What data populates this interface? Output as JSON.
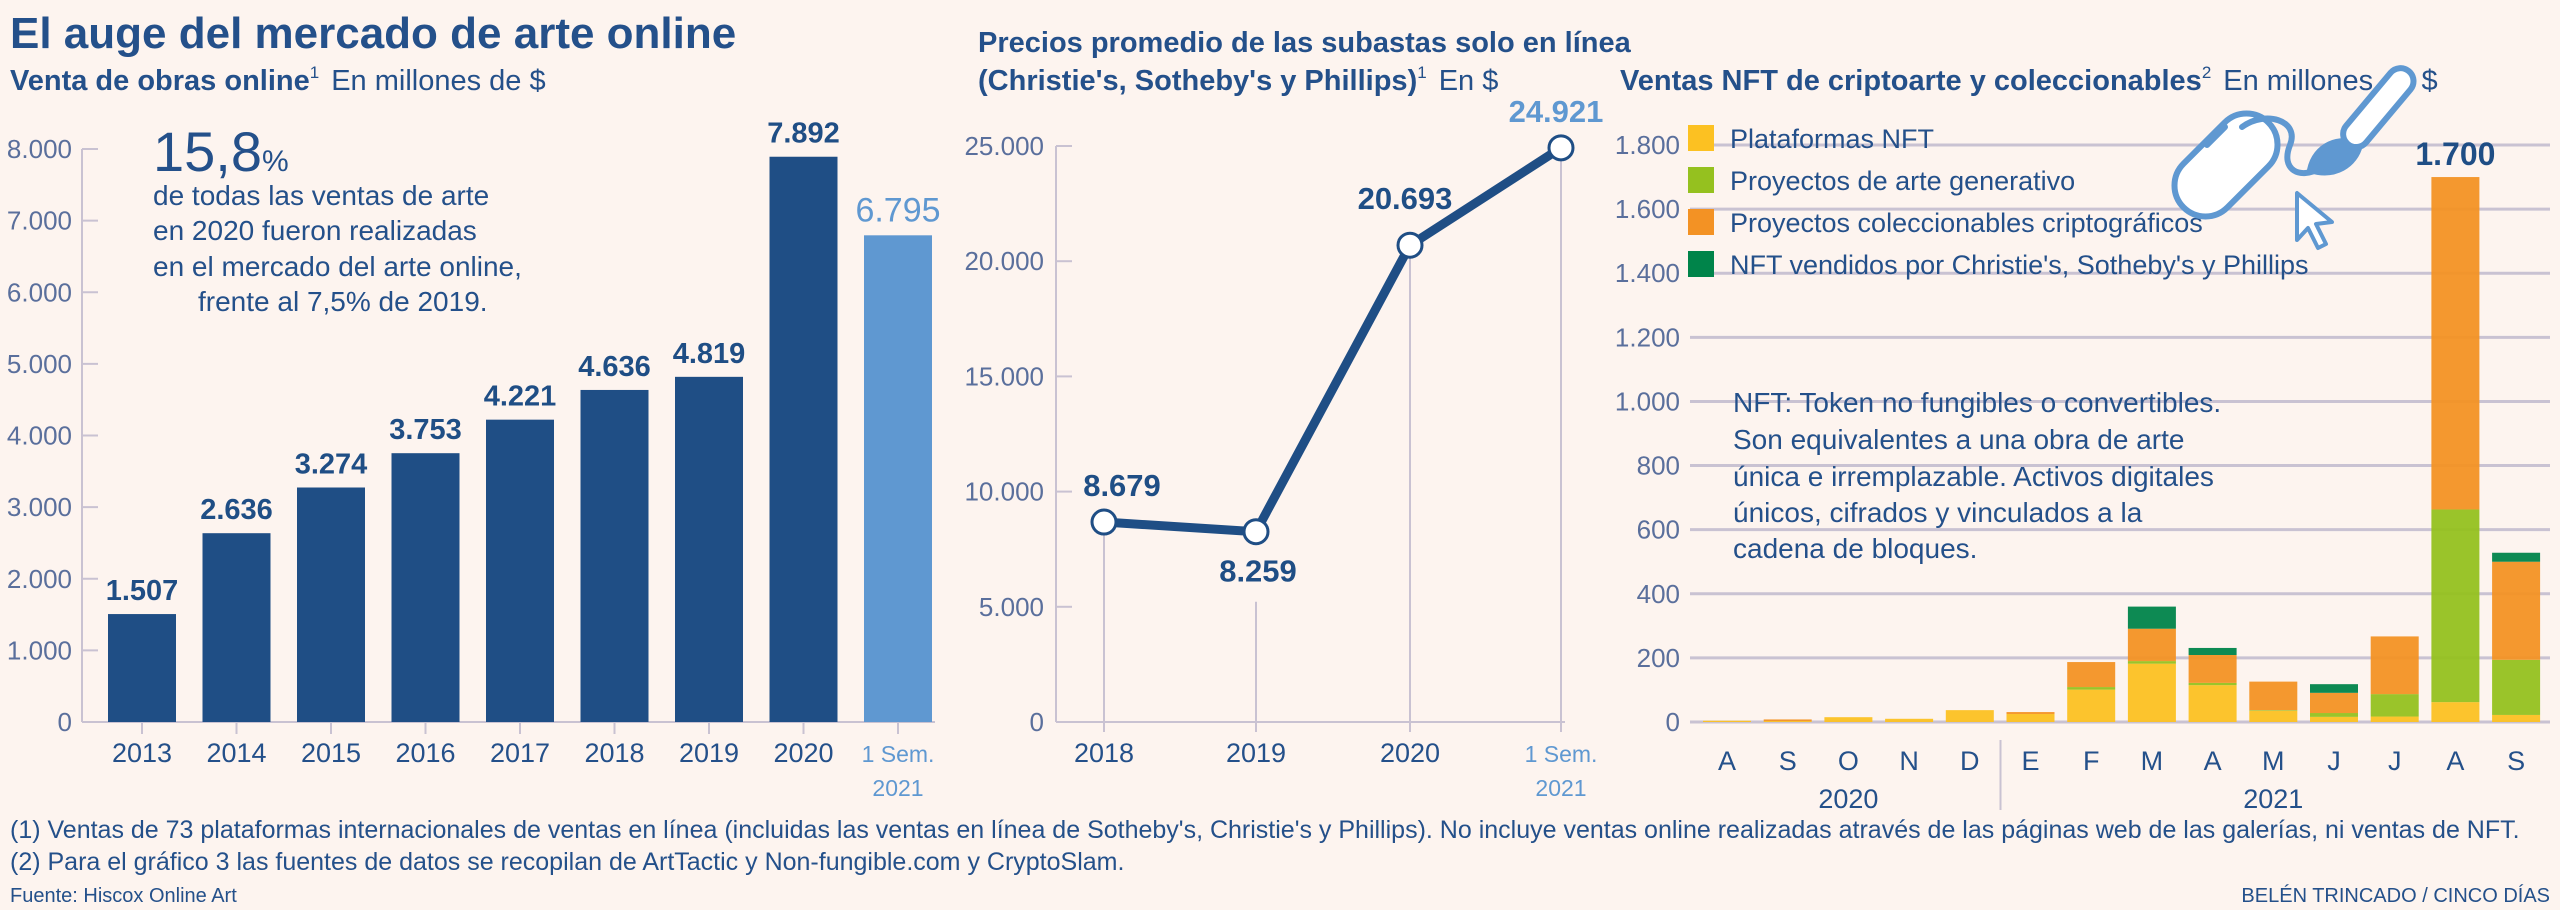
{
  "header": {
    "title": "El auge del mercado de arte online"
  },
  "colors": {
    "background": "#fdf4ef",
    "dark_blue": "#1f4e85",
    "light_blue": "#5f98d1",
    "nft_platforms": "#fcc122",
    "generative_art": "#95c11f",
    "collectibles": "#f39224",
    "auction_houses": "#00844a"
  },
  "icon": "mouse-and-paintbrush-icon",
  "callout": {
    "big_number": "15,8",
    "big_unit": "%",
    "lines": [
      "de todas las ventas de arte",
      "en 2020 fueron realizadas",
      "en el mercado del arte online,",
      "frente al 7,5% de 2019."
    ]
  },
  "nft_note": [
    "NFT: Token no fungibles o convertibles.",
    "Son equivalentes a una obra de arte",
    "única e irremplazable. Activos digitales",
    "únicos, cifrados y vinculados a la",
    "cadena de bloques."
  ],
  "chart_data": [
    {
      "type": "bar",
      "title": "Venta de obras online",
      "title_sup": "1",
      "subtitle": "En millones de $",
      "categories": [
        "2013",
        "2014",
        "2015",
        "2016",
        "2017",
        "2018",
        "2019",
        "2020",
        "1 Sem.|2021"
      ],
      "values": [
        1507,
        2636,
        3274,
        3753,
        4221,
        4636,
        4819,
        7892,
        6795
      ],
      "value_labels": [
        "1.507",
        "2.636",
        "3.274",
        "3.753",
        "4.221",
        "4.636",
        "4.819",
        "7.892",
        "6.795"
      ],
      "highlight_last": true,
      "ylim": [
        0,
        8000
      ],
      "yticks": [
        0,
        1000,
        2000,
        3000,
        4000,
        5000,
        6000,
        7000,
        8000
      ],
      "ytick_labels": [
        "0",
        "1.000",
        "2.000",
        "3.000",
        "4.000",
        "5.000",
        "6.000",
        "7.000",
        "8.000"
      ],
      "grid": false
    },
    {
      "type": "line",
      "title": [
        "Precios promedio de las subastas solo en línea",
        "(Christie's, Sotheby's y Phillips)"
      ],
      "title_sup": "1",
      "subtitle": "En $",
      "categories": [
        "2018",
        "2019",
        "2020",
        "1 Sem.|2021"
      ],
      "values": [
        8679,
        8259,
        20693,
        24921
      ],
      "value_labels": [
        "8.679",
        "8.259",
        "20.693",
        "24.921"
      ],
      "ylim": [
        0,
        25000
      ],
      "yticks": [
        0,
        5000,
        10000,
        15000,
        20000,
        25000
      ],
      "ytick_labels": [
        "0",
        "5.000",
        "10.000",
        "15.000",
        "20.000",
        "25.000"
      ],
      "grid": false
    },
    {
      "type": "bar",
      "stacked": true,
      "title": "Ventas NFT de criptoarte y coleccionables",
      "title_sup": "2",
      "subtitle": "En millones de $",
      "categories": [
        "A",
        "S",
        "O",
        "N",
        "D",
        "E",
        "F",
        "M",
        "A",
        "M",
        "J",
        "J",
        "A",
        "S"
      ],
      "year_groups": [
        {
          "label": "2020",
          "from": 0,
          "to": 4
        },
        {
          "label": "2021",
          "from": 5,
          "to": 13
        }
      ],
      "series": [
        {
          "name": "Plataformas NFT",
          "color": "#fcc122",
          "values": [
            4,
            3,
            15,
            10,
            37,
            25,
            101,
            182,
            115,
            35,
            16,
            17,
            62,
            22
          ]
        },
        {
          "name": "Proyectos de arte generativo",
          "color": "#95c11f",
          "values": [
            0,
            0,
            0,
            0,
            0,
            0,
            8,
            8,
            7,
            2,
            12,
            70,
            601,
            172
          ]
        },
        {
          "name": "Proyectos coleccionables criptográficos",
          "color": "#f39224",
          "values": [
            0,
            5,
            0,
            0,
            0,
            6,
            78,
            101,
            87,
            89,
            63,
            180,
            1037,
            306
          ]
        },
        {
          "name": "NFT vendidos por Christie's, Sotheby's y Phillips",
          "color": "#00844a",
          "values": [
            0,
            0,
            0,
            0,
            0,
            0,
            0,
            69,
            22,
            0,
            27,
            0,
            0,
            28
          ]
        }
      ],
      "annotations": [
        {
          "index": 12,
          "label": "1.700"
        }
      ],
      "ylim": [
        0,
        1800
      ],
      "yticks": [
        0,
        200,
        400,
        600,
        800,
        1000,
        1200,
        1400,
        1600,
        1800
      ],
      "ytick_labels": [
        "0",
        "200",
        "400",
        "600",
        "800",
        "1.000",
        "1.200",
        "1.400",
        "1.600",
        "1.800"
      ],
      "grid": true,
      "legend": "top-left"
    }
  ],
  "footnotes": [
    "(1) Ventas de 73 plataformas internacionales de ventas en línea (incluidas las ventas en línea de Sotheby's, Christie's y Phillips). No incluye ventas online realizadas através de las páginas web de las galerías, ni ventas de NFT.",
    "(2) Para el gráfico 3 las fuentes de datos se recopilan de ArtTactic y Non-fungible.com y CryptoSlam."
  ],
  "source": "Fuente: Hiscox Online Art",
  "credit": "BELÉN TRINCADO / CINCO DÍAS"
}
